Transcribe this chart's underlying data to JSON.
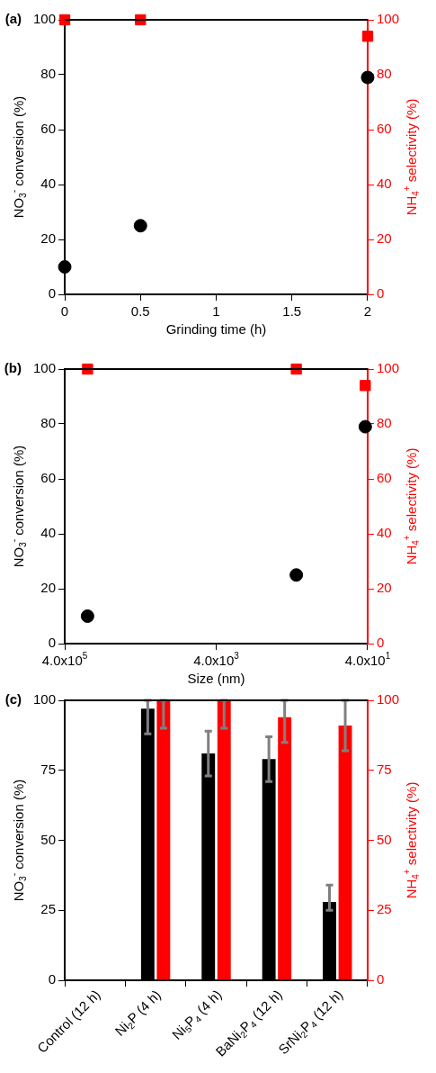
{
  "chart_data": [
    {
      "type": "scatter",
      "title": "(a)",
      "xlabel": "Grinding time (h)",
      "ylabel": "NO$_{3}$$^{-}$ conversion (%)",
      "y2label": "NH$_{4}$$^{+}$ selectivity (%)",
      "x": [
        0,
        0.5,
        2
      ],
      "xlim": [
        0,
        2
      ],
      "xticks": [
        0,
        0.5,
        1,
        1.5,
        2
      ],
      "ylim": [
        0,
        100
      ],
      "yticks": [
        0,
        20,
        40,
        60,
        80,
        100
      ],
      "y2lim": [
        0,
        100
      ],
      "y2ticks": [
        0,
        20,
        40,
        60,
        80,
        100
      ],
      "series": [
        {
          "color": "#000000",
          "marker": "circle",
          "values": [
            10,
            25,
            79
          ]
        },
        {
          "color": "#ff0000",
          "marker": "square",
          "axis": "y2",
          "values": [
            100,
            100,
            94
          ]
        }
      ]
    },
    {
      "type": "scatter",
      "title": "(b)",
      "xlabel": "Size (nm)",
      "ylabel": "NO$_{3}$$^{-}$ conversion (%)",
      "y2label": "NH$_{4}$$^{+}$ selectivity (%)",
      "log": "x",
      "x": [
        200000,
        350,
        43
      ],
      "xlim": [
        400000,
        40
      ],
      "xticks": [
        {
          "value": 400000,
          "label": "4.0x10$^{5}$"
        },
        {
          "value": 4000,
          "label": "4.0x10$^{3}$"
        },
        {
          "value": 40,
          "label": "4.0x10$^{1}$"
        }
      ],
      "ylim": [
        0,
        100
      ],
      "yticks": [
        0,
        20,
        40,
        60,
        80,
        100
      ],
      "y2lim": [
        0,
        100
      ],
      "y2ticks": [
        0,
        20,
        40,
        60,
        80,
        100
      ],
      "series": [
        {
          "color": "#000000",
          "marker": "circle",
          "values": [
            10,
            25,
            79
          ]
        },
        {
          "color": "#ff0000",
          "marker": "square",
          "axis": "y2",
          "values": [
            100,
            100,
            94
          ]
        }
      ]
    },
    {
      "type": "bar",
      "title": "(c)",
      "ylabel": "NO$_{3}$$^{-}$ conversion (%)",
      "y2label": "NH$_{4}$$^{+}$ selectivity (%)",
      "categories": [
        "Control (12 h)",
        "Ni$_{2}$P (4 h)",
        "Ni$_{5}$P$_{4}$ (4 h)",
        "BaNi$_{2}$P$_{4}$ (12 h)",
        "SrNi$_{2}$P$_{4}$ (12 h)"
      ],
      "ylim": [
        0,
        100
      ],
      "yticks": [
        0,
        25,
        50,
        75,
        100
      ],
      "y2lim": [
        0,
        100
      ],
      "y2ticks": [
        0,
        25,
        50,
        75,
        100
      ],
      "series": [
        {
          "color": "#000000",
          "values": [
            0,
            97,
            81,
            79,
            28
          ],
          "errors": [
            null,
            [
              88,
              100
            ],
            [
              73,
              89
            ],
            [
              71,
              87
            ],
            [
              25,
              34
            ]
          ]
        },
        {
          "color": "#ff0000",
          "axis": "y2",
          "values": [
            0,
            100,
            100,
            94,
            91
          ],
          "errors": [
            null,
            [
              90,
              100
            ],
            [
              90,
              100
            ],
            [
              85,
              100
            ],
            [
              82,
              100
            ]
          ]
        }
      ]
    }
  ]
}
